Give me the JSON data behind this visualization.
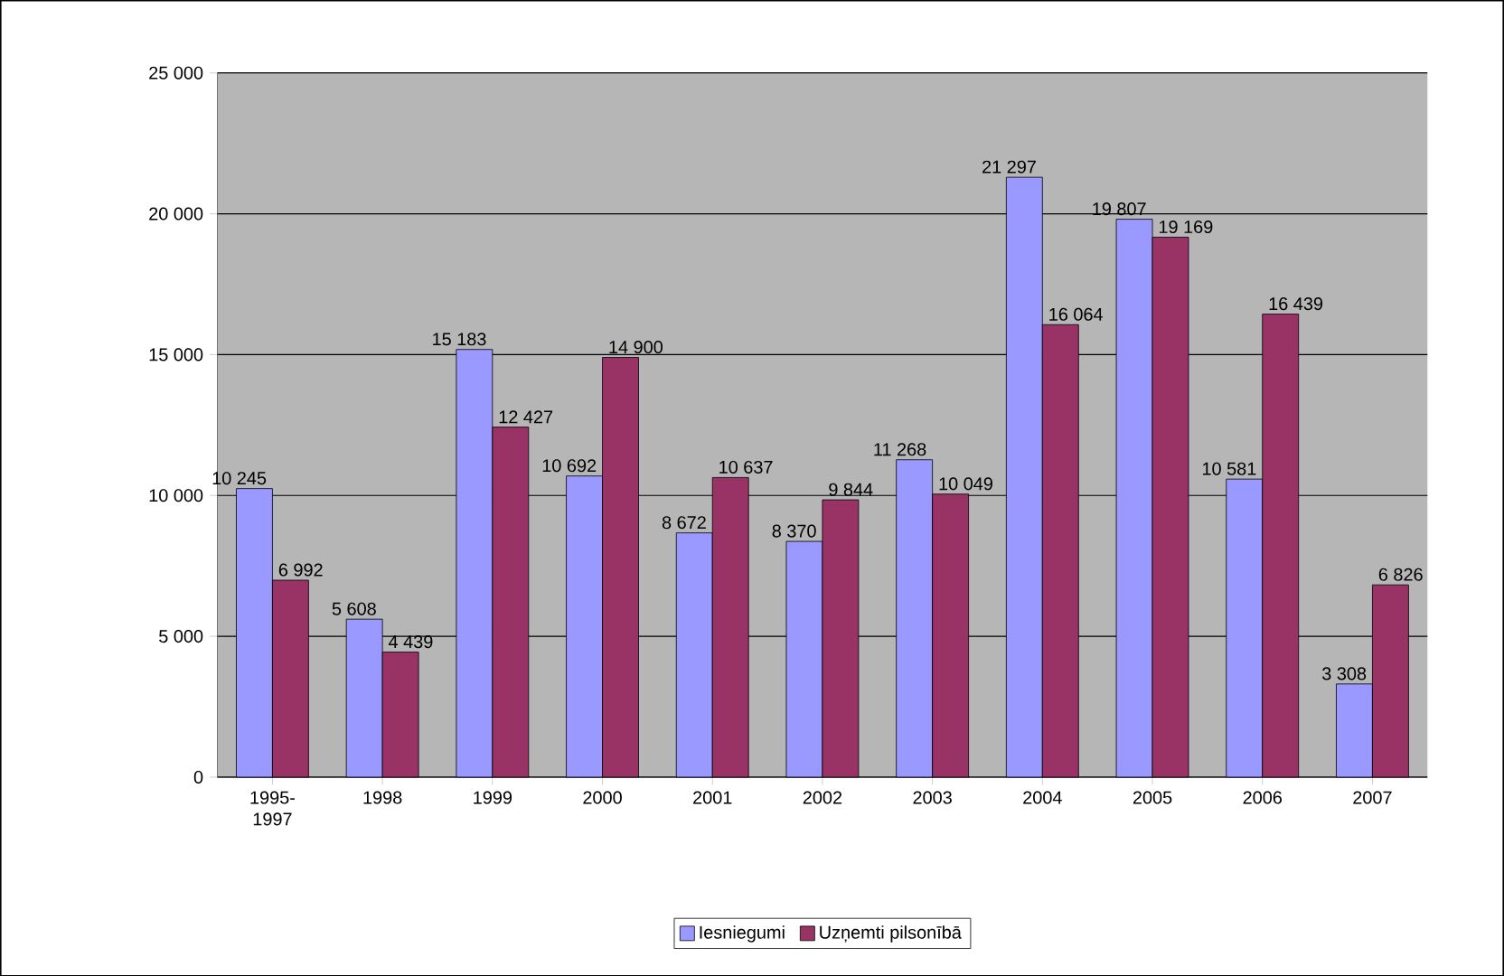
{
  "chart_data": {
    "type": "bar",
    "categories": [
      "1995-1997",
      "1998",
      "1999",
      "2000",
      "2001",
      "2002",
      "2003",
      "2004",
      "2005",
      "2006",
      "2007"
    ],
    "series": [
      {
        "name": "Iesniegumi",
        "color": "#9999ff",
        "values": [
          10245,
          5608,
          15183,
          10692,
          8672,
          8370,
          11268,
          21297,
          19807,
          10581,
          3308
        ],
        "value_labels": [
          "10 245",
          "5 608",
          "15 183",
          "10 692",
          "8 672",
          "8 370",
          "11 268",
          "21 297",
          "19 807",
          "10 581",
          "3 308"
        ]
      },
      {
        "name": "Uzņemti pilsonībā",
        "color": "#993366",
        "values": [
          6992,
          4439,
          12427,
          14900,
          10637,
          9844,
          10049,
          16064,
          19169,
          16439,
          6826
        ],
        "value_labels": [
          "6 992",
          "4 439",
          "12 427",
          "14 900",
          "10 637",
          "9 844",
          "10 049",
          "16 064",
          "19 169",
          "16 439",
          "6 826"
        ]
      }
    ],
    "ylim": [
      0,
      25000
    ],
    "yticks": [
      0,
      {
        "value": 5000,
        "label": "5 000"
      },
      {
        "value": 10000,
        "label": "10 000"
      },
      {
        "value": 15000,
        "label": "15 000"
      },
      {
        "value": 20000,
        "label": "20 000"
      },
      {
        "value": 25000,
        "label": "25 000"
      }
    ],
    "grid": "y",
    "legend": "bottom"
  }
}
